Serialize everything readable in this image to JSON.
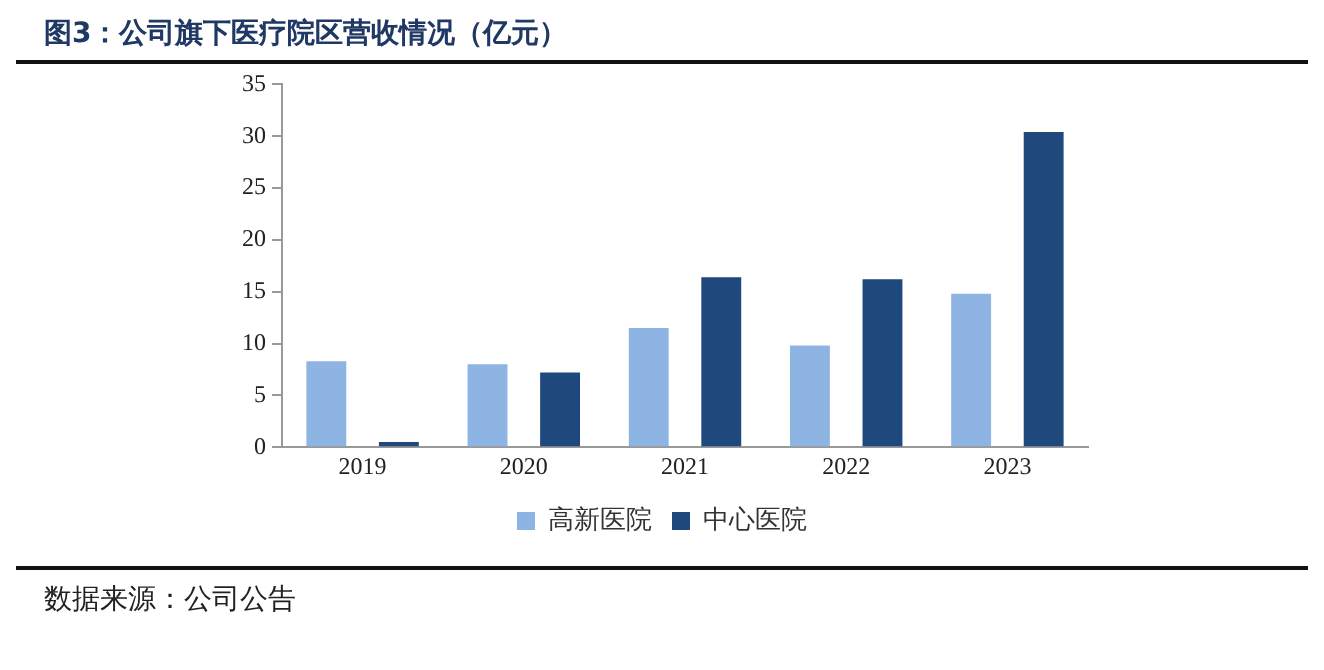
{
  "chart_data": {
    "type": "bar",
    "title": "图3：公司旗下医疗院区营收情况（亿元）",
    "categories": [
      "2019",
      "2020",
      "2021",
      "2022",
      "2023"
    ],
    "series": [
      {
        "name": "高新医院",
        "color": "#8eb4e3",
        "values": [
          8.3,
          8.0,
          11.5,
          9.8,
          14.8
        ]
      },
      {
        "name": "中心医院",
        "color": "#1f497d",
        "values": [
          0.5,
          7.2,
          16.4,
          16.2,
          30.4
        ]
      }
    ],
    "ylim": [
      0,
      35
    ],
    "yticks": [
      0,
      5,
      10,
      15,
      20,
      25,
      30,
      35
    ],
    "grid": false,
    "legend": "bottom",
    "annotations": [
      "数据来源：公司公告"
    ]
  }
}
